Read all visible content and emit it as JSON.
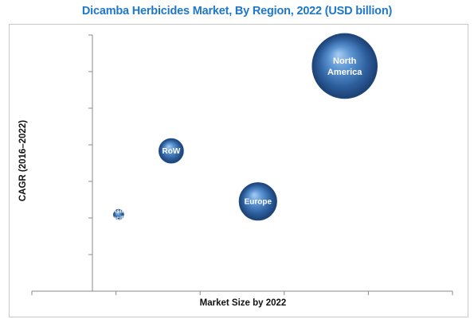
{
  "title": "Dicamba Herbicides Market, By Region, 2022 (USD billion)",
  "chart_data": {
    "type": "bubble",
    "title": "Dicamba Herbicides Market, By Region, 2022 (USD billion)",
    "xlabel": "Market Size by 2022",
    "ylabel": "CAGR (2016–2022)",
    "grid": false,
    "x_ticks": 6,
    "y_ticks": 7,
    "points": [
      {
        "label": "North America",
        "label_lines": [
          "North",
          "America"
        ],
        "x": 4.95,
        "y": 6.05,
        "size": 1.0
      },
      {
        "label": "RoW",
        "label_lines": [
          "RoW"
        ],
        "x": 1.65,
        "y": 3.45,
        "size": 0.38
      },
      {
        "label": "Europe",
        "label_lines": [
          "Europe"
        ],
        "x": 3.3,
        "y": 1.9,
        "size": 0.58
      },
      {
        "label": "Asia Pacific",
        "label_lines": [
          "Asia",
          "Pacific"
        ],
        "x": 0.65,
        "y": 1.5,
        "size": 0.16
      }
    ],
    "xlim": [
      -1,
      7
    ],
    "ylim": [
      -0.85,
      7
    ]
  }
}
